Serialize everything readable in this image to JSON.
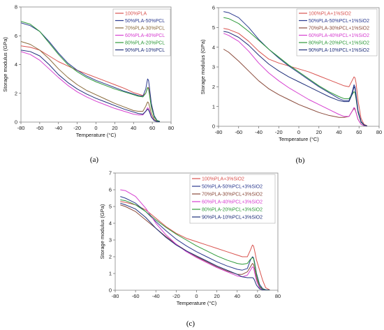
{
  "chart_data": [
    {
      "type": "line",
      "panel_label": "(a)",
      "xlabel": "Temperature (°C)",
      "ylabel": "Storage modulus (GPa)",
      "xlim": [
        -80,
        80
      ],
      "ylim": [
        0,
        8
      ],
      "xticks": [
        -80,
        -60,
        -40,
        -20,
        0,
        20,
        40,
        60,
        80
      ],
      "yticks": [
        0,
        2,
        4,
        6,
        8
      ],
      "legend_position": "top-right",
      "series": [
        {
          "name": "100%PLA",
          "color": "#d9534f",
          "x": [
            -80,
            -70,
            -60,
            -50,
            -40,
            -30,
            -20,
            -10,
            0,
            10,
            20,
            30,
            40,
            45,
            50,
            53,
            55,
            56,
            57,
            59,
            62,
            65,
            68
          ],
          "y": [
            5.3,
            5.2,
            5.0,
            4.6,
            4.2,
            3.9,
            3.6,
            3.35,
            3.1,
            2.85,
            2.6,
            2.35,
            2.05,
            1.95,
            1.85,
            2.0,
            2.4,
            2.4,
            2.1,
            1.2,
            0.4,
            0.1,
            0.05
          ]
        },
        {
          "name": "50%PLA-50%PCL",
          "color": "#2b3a8f",
          "x": [
            -80,
            -70,
            -60,
            -50,
            -40,
            -30,
            -20,
            -10,
            0,
            10,
            20,
            30,
            40,
            45,
            50,
            53,
            55,
            56,
            57,
            59,
            62,
            65,
            68
          ],
          "y": [
            6.9,
            6.7,
            6.3,
            5.6,
            4.8,
            4.1,
            3.6,
            3.2,
            2.9,
            2.65,
            2.4,
            2.15,
            1.95,
            1.85,
            1.8,
            2.3,
            3.0,
            2.9,
            2.4,
            1.3,
            0.45,
            0.12,
            0.05
          ]
        },
        {
          "name": "70%PLA-30%PCL",
          "color": "#8a6a3b",
          "x": [
            -80,
            -70,
            -60,
            -50,
            -40,
            -30,
            -20,
            -10,
            0,
            10,
            20,
            30,
            40,
            45,
            50,
            53,
            55,
            56,
            57,
            59,
            62,
            65,
            68
          ],
          "y": [
            5.6,
            5.4,
            5.0,
            4.4,
            3.7,
            3.1,
            2.6,
            2.2,
            1.9,
            1.6,
            1.3,
            1.05,
            0.8,
            0.75,
            0.75,
            1.1,
            1.4,
            1.35,
            1.1,
            0.6,
            0.2,
            0.05,
            0.02
          ]
        },
        {
          "name": "60%PLA-40%PCL",
          "color": "#d63fd0",
          "x": [
            -80,
            -70,
            -60,
            -50,
            -40,
            -30,
            -20,
            -10,
            0,
            10,
            20,
            30,
            40,
            45,
            50,
            53,
            55,
            56,
            57,
            59,
            62,
            65,
            68
          ],
          "y": [
            4.9,
            4.7,
            4.3,
            3.7,
            3.1,
            2.55,
            2.1,
            1.75,
            1.45,
            1.2,
            0.95,
            0.75,
            0.55,
            0.5,
            0.5,
            0.75,
            1.0,
            0.95,
            0.8,
            0.4,
            0.12,
            0.03,
            0.01
          ]
        },
        {
          "name": "80%PLA-20%PCL",
          "color": "#2e9a3a",
          "x": [
            -80,
            -70,
            -60,
            -50,
            -40,
            -30,
            -20,
            -10,
            0,
            10,
            20,
            30,
            40,
            45,
            50,
            53,
            55,
            56,
            57,
            59,
            62,
            65,
            68
          ],
          "y": [
            7.0,
            6.8,
            6.3,
            5.5,
            4.7,
            4.0,
            3.5,
            3.1,
            2.8,
            2.55,
            2.3,
            2.1,
            1.9,
            1.8,
            1.75,
            2.0,
            2.4,
            2.3,
            1.9,
            1.0,
            0.35,
            0.1,
            0.03
          ]
        },
        {
          "name": "90%PLA-10%PCL",
          "color": "#1f2f7a",
          "x": [
            -80,
            -70,
            -60,
            -50,
            -40,
            -30,
            -20,
            -10,
            0,
            10,
            20,
            30,
            40,
            45,
            50,
            53,
            55,
            56,
            57,
            59,
            62,
            65,
            68
          ],
          "y": [
            5.0,
            4.9,
            4.6,
            4.0,
            3.3,
            2.75,
            2.3,
            1.95,
            1.65,
            1.4,
            1.15,
            0.9,
            0.7,
            0.6,
            0.55,
            0.75,
            0.9,
            0.85,
            0.7,
            0.35,
            0.1,
            0.03,
            0.01
          ]
        }
      ]
    },
    {
      "type": "line",
      "panel_label": "(b)",
      "xlabel": "Temperature (°C)",
      "ylabel": "Storage modulus (GPa)",
      "xlim": [
        -80,
        80
      ],
      "ylim": [
        0,
        6
      ],
      "xticks": [
        -80,
        -60,
        -40,
        -20,
        0,
        20,
        40,
        60,
        80
      ],
      "yticks": [
        0,
        1,
        2,
        3,
        4,
        5,
        6
      ],
      "legend_position": "top-right",
      "series": [
        {
          "name": "100%PLA+1%SiO2",
          "color": "#d9534f",
          "x": [
            -75,
            -70,
            -60,
            -50,
            -40,
            -30,
            -20,
            -10,
            0,
            10,
            20,
            30,
            40,
            45,
            50,
            53,
            55,
            56,
            57,
            59,
            62,
            65,
            68
          ],
          "y": [
            4.95,
            4.9,
            4.7,
            4.3,
            3.8,
            3.4,
            3.2,
            3.05,
            2.9,
            2.75,
            2.55,
            2.35,
            2.15,
            2.05,
            2.0,
            2.3,
            2.5,
            2.45,
            2.2,
            1.3,
            0.4,
            0.1,
            0.03
          ]
        },
        {
          "name": "50%PLA-50%PCL+1%SiO2",
          "color": "#2b3a8f",
          "x": [
            -75,
            -70,
            -60,
            -50,
            -40,
            -30,
            -20,
            -10,
            0,
            10,
            20,
            30,
            40,
            45,
            50,
            53,
            55,
            56,
            57,
            59,
            62,
            65,
            68
          ],
          "y": [
            5.8,
            5.75,
            5.5,
            5.0,
            4.4,
            3.9,
            3.45,
            3.05,
            2.7,
            2.35,
            2.0,
            1.7,
            1.4,
            1.3,
            1.3,
            1.7,
            2.1,
            2.0,
            1.6,
            0.8,
            0.25,
            0.07,
            0.02
          ]
        },
        {
          "name": "70%PLA-30%PCL+1%SiO2",
          "color": "#8a4a3b",
          "x": [
            -75,
            -70,
            -60,
            -50,
            -40,
            -30,
            -20,
            -10,
            0,
            10,
            20,
            30,
            40,
            45,
            50,
            53,
            55,
            56,
            57,
            59,
            62,
            65,
            68
          ],
          "y": [
            3.9,
            3.75,
            3.3,
            2.8,
            2.3,
            1.9,
            1.6,
            1.35,
            1.1,
            0.9,
            0.7,
            0.55,
            0.45,
            0.45,
            0.5,
            0.75,
            0.9,
            0.85,
            0.7,
            0.35,
            0.1,
            0.03,
            0.01
          ]
        },
        {
          "name": "60%PLA-40%PCL+1%SiO2",
          "color": "#d63fd0",
          "x": [
            -75,
            -70,
            -60,
            -50,
            -40,
            -30,
            -20,
            -10,
            0,
            10,
            20,
            30,
            40,
            45,
            50,
            53,
            55,
            56,
            57,
            59,
            62,
            65,
            68
          ],
          "y": [
            4.7,
            4.6,
            4.3,
            3.8,
            3.2,
            2.7,
            2.3,
            1.95,
            1.65,
            1.35,
            1.1,
            0.85,
            0.6,
            0.5,
            0.5,
            0.75,
            0.95,
            0.9,
            0.7,
            0.35,
            0.1,
            0.03,
            0.01
          ]
        },
        {
          "name": "80%PLA-20%PCL+1%SiO2",
          "color": "#2e9a3a",
          "x": [
            -75,
            -70,
            -60,
            -50,
            -40,
            -30,
            -20,
            -10,
            0,
            10,
            20,
            30,
            40,
            45,
            50,
            53,
            55,
            56,
            57,
            59,
            62,
            65,
            68
          ],
          "y": [
            5.5,
            5.45,
            5.2,
            4.8,
            4.35,
            3.9,
            3.5,
            3.1,
            2.75,
            2.4,
            2.05,
            1.75,
            1.5,
            1.4,
            1.4,
            1.6,
            1.75,
            1.7,
            1.4,
            0.7,
            0.2,
            0.05,
            0.02
          ]
        },
        {
          "name": "90%PLA-10%PCL+1%SiO2",
          "color": "#1f2f7a",
          "x": [
            -75,
            -70,
            -60,
            -50,
            -40,
            -30,
            -20,
            -10,
            0,
            10,
            20,
            30,
            40,
            45,
            50,
            53,
            55,
            56,
            57,
            59,
            62,
            65,
            68
          ],
          "y": [
            4.8,
            4.75,
            4.5,
            4.1,
            3.6,
            3.15,
            2.8,
            2.5,
            2.25,
            2.0,
            1.75,
            1.5,
            1.3,
            1.25,
            1.25,
            1.6,
            2.0,
            1.9,
            1.5,
            0.75,
            0.22,
            0.06,
            0.02
          ]
        }
      ]
    },
    {
      "type": "line",
      "panel_label": "(c)",
      "xlabel": "Temperature (°C)",
      "ylabel": "Storage modulus (GPa)",
      "xlim": [
        -80,
        80
      ],
      "ylim": [
        0,
        7
      ],
      "xticks": [
        -80,
        -60,
        -40,
        -20,
        0,
        20,
        40,
        60,
        80
      ],
      "yticks": [
        0,
        1,
        2,
        3,
        4,
        5,
        6,
        7
      ],
      "legend_position": "top-right",
      "series": [
        {
          "name": "100%PLA+3%SiO2",
          "color": "#d9534f",
          "x": [
            -75,
            -70,
            -60,
            -50,
            -40,
            -30,
            -20,
            -10,
            0,
            10,
            20,
            30,
            40,
            45,
            50,
            53,
            55,
            56,
            57,
            59,
            62,
            65,
            68,
            72
          ],
          "y": [
            5.3,
            5.25,
            5.1,
            4.8,
            4.3,
            3.8,
            3.4,
            3.1,
            2.9,
            2.7,
            2.5,
            2.3,
            2.1,
            2.0,
            2.0,
            2.4,
            2.7,
            2.65,
            2.4,
            1.8,
            1.2,
            0.6,
            0.15,
            0.02
          ]
        },
        {
          "name": "50%PLA-50%PCL+3%SiO2",
          "color": "#2b3a8f",
          "x": [
            -75,
            -70,
            -60,
            -50,
            -40,
            -30,
            -20,
            -10,
            0,
            10,
            20,
            30,
            40,
            45,
            50,
            53,
            55,
            56,
            57,
            59,
            62,
            65,
            68,
            72
          ],
          "y": [
            5.6,
            5.5,
            5.2,
            4.7,
            4.1,
            3.55,
            3.05,
            2.65,
            2.3,
            2.0,
            1.7,
            1.45,
            1.25,
            1.2,
            1.3,
            1.8,
            2.0,
            1.95,
            1.7,
            1.0,
            0.35,
            0.1,
            0.03,
            0.01
          ]
        },
        {
          "name": "70%PLA-30%PCL+3%SiO2",
          "color": "#8a4a3b",
          "x": [
            -75,
            -70,
            -60,
            -50,
            -40,
            -30,
            -20,
            -10,
            0,
            10,
            20,
            30,
            40,
            45,
            50,
            53,
            55,
            56,
            57,
            59,
            62,
            65,
            68,
            72
          ],
          "y": [
            5.1,
            5.0,
            4.7,
            4.2,
            3.7,
            3.2,
            2.75,
            2.35,
            2.0,
            1.7,
            1.4,
            1.15,
            0.95,
            0.95,
            1.1,
            1.4,
            1.6,
            1.55,
            1.3,
            0.7,
            0.2,
            0.05,
            0.02,
            0.01
          ]
        },
        {
          "name": "60%PLA-40%PCL+3%SiO2",
          "color": "#d63fd0",
          "x": [
            -75,
            -70,
            -60,
            -50,
            -40,
            -30,
            -20,
            -10,
            0,
            10,
            20,
            30,
            40,
            45,
            50,
            53,
            55,
            56,
            57,
            59,
            62,
            65,
            68,
            72
          ],
          "y": [
            6.0,
            5.95,
            5.6,
            4.9,
            4.0,
            3.3,
            2.75,
            2.3,
            1.95,
            1.65,
            1.35,
            1.1,
            0.85,
            0.8,
            0.9,
            1.2,
            1.4,
            1.35,
            1.1,
            0.55,
            0.15,
            0.04,
            0.01,
            0.0
          ]
        },
        {
          "name": "80%PLA-20%PCL+3%SiO2",
          "color": "#2e9a3a",
          "x": [
            -75,
            -70,
            -60,
            -50,
            -40,
            -30,
            -20,
            -10,
            0,
            10,
            20,
            30,
            40,
            45,
            50,
            53,
            55,
            56,
            57,
            59,
            62,
            65,
            68,
            72
          ],
          "y": [
            5.4,
            5.35,
            5.1,
            4.7,
            4.2,
            3.75,
            3.35,
            3.0,
            2.65,
            2.35,
            2.05,
            1.8,
            1.6,
            1.55,
            1.6,
            1.85,
            1.95,
            1.9,
            1.6,
            0.9,
            0.25,
            0.07,
            0.02,
            0.01
          ]
        },
        {
          "name": "90%PLA-10%PCL+3%SiO2",
          "color": "#1f2f7a",
          "x": [
            -75,
            -70,
            -60,
            -50,
            -40,
            -30,
            -20,
            -10,
            0,
            10,
            20,
            30,
            40,
            45,
            50,
            53,
            55,
            56,
            57,
            59,
            62,
            65,
            68,
            72
          ],
          "y": [
            5.2,
            5.1,
            4.85,
            4.35,
            3.7,
            3.15,
            2.7,
            2.35,
            2.05,
            1.75,
            1.45,
            1.2,
            0.95,
            0.8,
            0.75,
            0.75,
            0.75,
            0.72,
            0.6,
            0.3,
            0.08,
            0.02,
            0.01,
            0.0
          ]
        }
      ]
    }
  ]
}
